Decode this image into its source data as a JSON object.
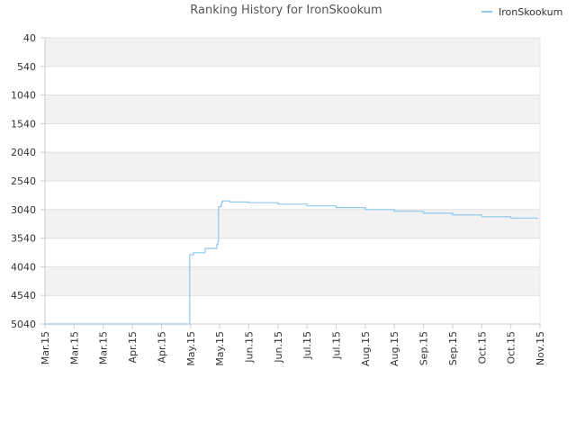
{
  "chart_data": {
    "type": "line",
    "title": "Ranking History for IronSkookum",
    "xlabel": "",
    "ylabel": "",
    "y_inverted": true,
    "ylim": [
      5040,
      40
    ],
    "grid": true,
    "legend_position": "top-right",
    "y_ticks": [
      40,
      540,
      1040,
      1540,
      2040,
      2540,
      3040,
      3540,
      4040,
      4540,
      5040
    ],
    "x_tick_labels": [
      "Mar.15",
      "Mar.15",
      "Mar.15",
      "Apr.15",
      "Apr.15",
      "May.15",
      "May.15",
      "Jun.15",
      "Jun.15",
      "Jul.15",
      "Jul.15",
      "Aug.15",
      "Aug.15",
      "Sep.15",
      "Sep.15",
      "Oct.15",
      "Oct.15",
      "Nov.15"
    ],
    "series": [
      {
        "name": "IronSkookum",
        "color": "#90c8f0",
        "points": [
          [
            0,
            5040
          ],
          [
            4.95,
            5040
          ],
          [
            4.97,
            3830
          ],
          [
            5.1,
            3795
          ],
          [
            5.5,
            3720
          ],
          [
            5.9,
            3650
          ],
          [
            5.94,
            3600
          ],
          [
            5.96,
            2990
          ],
          [
            6.05,
            2950
          ],
          [
            6.07,
            2910
          ],
          [
            6.1,
            2890
          ],
          [
            6.3,
            2890
          ],
          [
            6.35,
            2910
          ],
          [
            7.0,
            2920
          ],
          [
            8.0,
            2945
          ],
          [
            9.0,
            2975
          ],
          [
            10.0,
            3005
          ],
          [
            11.0,
            3040
          ],
          [
            12.0,
            3070
          ],
          [
            13.0,
            3105
          ],
          [
            14.0,
            3135
          ],
          [
            15.0,
            3165
          ],
          [
            16.0,
            3190
          ],
          [
            16.9,
            3210
          ]
        ]
      }
    ]
  }
}
